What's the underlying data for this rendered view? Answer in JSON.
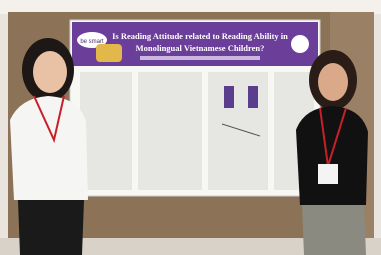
{
  "poster": {
    "badge": "be smart",
    "title_lines": [
      "Is Reading Attitude related to Reading Ability in",
      "Monolingual Vietnamese Children?"
    ]
  }
}
